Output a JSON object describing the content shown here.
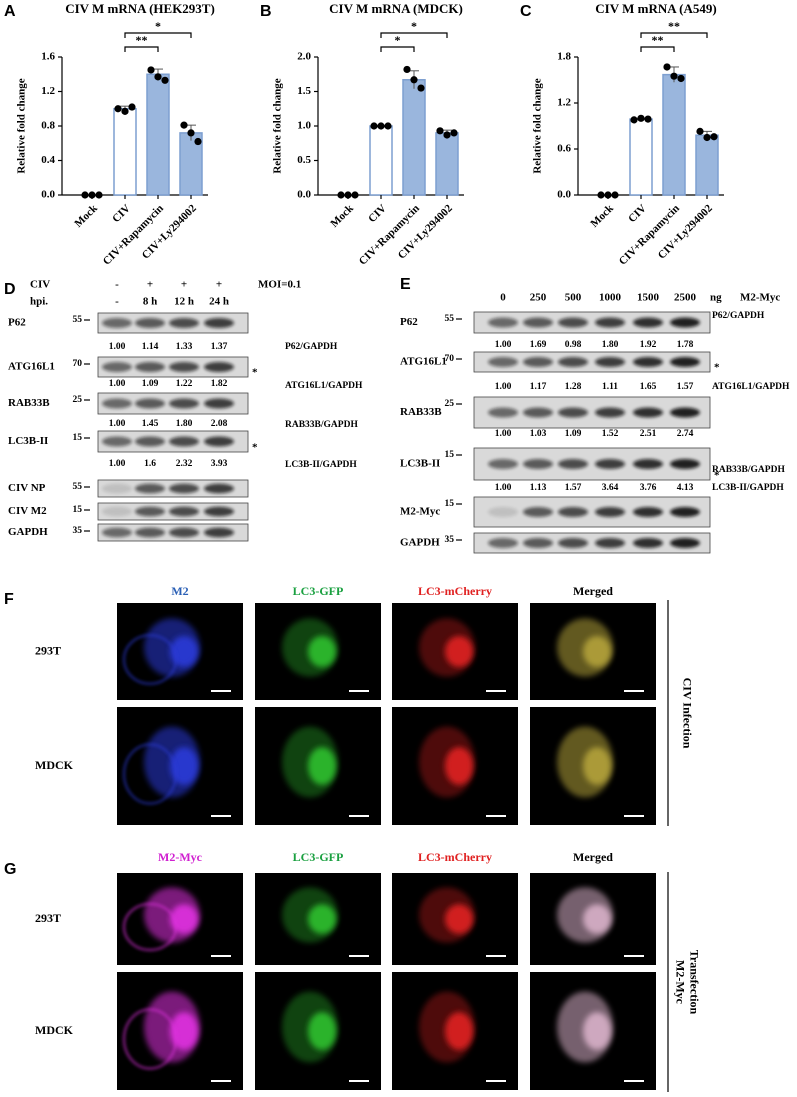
{
  "chart_data": [
    {
      "type": "bar",
      "panel": "A",
      "title": "CIV M mRNA (HEK293T)",
      "y_label": "Relative fold change",
      "categories": [
        "Mock",
        "CIV",
        "CIV+Rapamycin",
        "CIV+Ly294002"
      ],
      "values": [
        0,
        1.0,
        1.4,
        0.72
      ],
      "errors": [
        0,
        0.03,
        0.06,
        0.09
      ],
      "points": [
        [
          0,
          0,
          0
        ],
        [
          1.0,
          0.97,
          1.02
        ],
        [
          1.45,
          1.37,
          1.33
        ],
        [
          0.81,
          0.72,
          0.62
        ]
      ],
      "fill_colors": [
        "#ffffff",
        "#ffffff",
        "#9ab6dd",
        "#9ab6dd"
      ],
      "edge_color": "#7d9fd0",
      "ylim": [
        0,
        1.6
      ],
      "yticks": [
        {
          "value": 0,
          "label": "0.0"
        },
        0.4,
        0.8,
        1.2,
        1.6
      ],
      "significance": [
        null,
        null,
        "**",
        "*"
      ]
    },
    {
      "type": "bar",
      "panel": "B",
      "title": "CIV M mRNA (MDCK)",
      "y_label": "Relative fold change",
      "categories": [
        "Mock",
        "CIV",
        "CIV+Rapamycin",
        "CIV+Ly294002"
      ],
      "values": [
        0,
        1.0,
        1.67,
        0.9
      ],
      "errors": [
        0,
        0.01,
        0.13,
        0.04
      ],
      "points": [
        [
          0,
          0,
          0
        ],
        [
          1.0,
          1.0,
          1.0
        ],
        [
          1.82,
          1.67,
          1.55
        ],
        [
          0.93,
          0.87,
          0.9
        ]
      ],
      "fill_colors": [
        "#ffffff",
        "#ffffff",
        "#9ab6dd",
        "#9ab6dd"
      ],
      "edge_color": "#7d9fd0",
      "ylim": [
        0,
        2.0
      ],
      "yticks": [
        {
          "value": 0,
          "label": "0.0"
        },
        0.5,
        {
          "value": 1,
          "label": "1.0"
        },
        1.5,
        {
          "value": 2,
          "label": "2.0"
        }
      ],
      "significance": [
        null,
        null,
        "*",
        "*"
      ]
    },
    {
      "type": "bar",
      "panel": "C",
      "title": "CIV M mRNA (A549)",
      "y_label": "Relative fold change",
      "categories": [
        "Mock",
        "CIV",
        "CIV+Rapamycin",
        "CIV+Ly294002"
      ],
      "values": [
        0,
        0.99,
        1.57,
        0.78
      ],
      "errors": [
        0,
        0.01,
        0.1,
        0.05
      ],
      "points": [
        [
          0,
          0,
          0
        ],
        [
          0.98,
          1.0,
          0.99
        ],
        [
          1.67,
          1.55,
          1.52
        ],
        [
          0.83,
          0.75,
          0.76
        ]
      ],
      "fill_colors": [
        "#ffffff",
        "#ffffff",
        "#9ab6dd",
        "#9ab6dd"
      ],
      "edge_color": "#7d9fd0",
      "ylim": [
        0,
        1.8
      ],
      "yticks": [
        {
          "value": 0,
          "label": "0.0"
        },
        0.6,
        1.2,
        1.8
      ],
      "significance": [
        null,
        null,
        "**",
        "**"
      ]
    }
  ],
  "blots": [
    {
      "panel": "D",
      "header": [
        {
          "label": "CIV",
          "lanes": [
            "-",
            "+",
            "+",
            "+"
          ],
          "note": "MOI=0.1"
        },
        {
          "label": "hpi.",
          "lanes": [
            "-",
            "8 h",
            "12 h",
            "24 h"
          ]
        }
      ],
      "rows": [
        {
          "name": "P62",
          "marker": "55",
          "ratios": [
            "1.00",
            "1.14",
            "1.33",
            "1.37"
          ],
          "ratio_label": "P62/GAPDH"
        },
        {
          "name": "ATG16L1",
          "marker": "70",
          "ratios": [
            "1.00",
            "1.09",
            "1.22",
            "1.82"
          ],
          "ratio_label": "ATG16L1/GAPDH",
          "asterisk": "*"
        },
        {
          "name": "RAB33B",
          "marker": "25",
          "ratios": [
            "1.00",
            "1.45",
            "1.80",
            "2.08"
          ],
          "ratio_label": "RAB33B/GAPDH"
        },
        {
          "name": "LC3B-II",
          "marker": "15",
          "ratios": [
            "1.00",
            "1.6",
            "2.32",
            "3.93"
          ],
          "ratio_label": "LC3B-II/GAPDH",
          "asterisk": "*"
        },
        {
          "name": "CIV NP",
          "marker": "55"
        },
        {
          "name": "CIV M2",
          "marker": "15"
        },
        {
          "name": "GAPDH",
          "marker": "35"
        }
      ]
    },
    {
      "panel": "E",
      "header": [
        {
          "label": "M2-Myc",
          "lanes": [
            "0",
            "250",
            "500",
            "1000",
            "1500",
            "2500"
          ],
          "unit": "ng"
        }
      ],
      "rows": [
        {
          "name": "P62",
          "marker": "55",
          "ratios": [
            "1.00",
            "1.69",
            "0.98",
            "1.80",
            "1.92",
            "1.78"
          ],
          "ratio_label": "P62/GAPDH"
        },
        {
          "name": "ATG16L1",
          "marker": "70",
          "ratios": [
            "1.00",
            "1.17",
            "1.28",
            "1.11",
            "1.65",
            "1.57"
          ],
          "ratio_label": "ATG16L1/GAPDH",
          "asterisk": "*"
        },
        {
          "name": "RAB33B",
          "marker": "25",
          "ratios": [
            "1.00",
            "1.03",
            "1.09",
            "1.52",
            "2.51",
            "2.74"
          ],
          "ratio_label": "RAB33B/GAPDH"
        },
        {
          "name": "LC3B-II",
          "marker": "15",
          "ratios": [
            "1.00",
            "1.13",
            "1.57",
            "3.64",
            "3.76",
            "4.13"
          ],
          "ratio_label": "LC3B-II/GAPDH",
          "asterisk": "*"
        },
        {
          "name": "M2-Myc",
          "marker": "15"
        },
        {
          "name": "GAPDH",
          "marker": "35"
        }
      ]
    }
  ],
  "microscopy": [
    {
      "panel": "F",
      "columns": [
        "M2",
        "LC3-GFP",
        "LC3-mCherry",
        "Merged"
      ],
      "rows": [
        "293T",
        "MDCK"
      ],
      "side_label": [
        "CIV Infection"
      ]
    },
    {
      "panel": "G",
      "columns": [
        "M2-Myc",
        "LC3-GFP",
        "LC3-mCherry",
        "Merged"
      ],
      "rows": [
        "293T",
        "MDCK"
      ],
      "side_label": [
        "M2-Myc",
        "Transfection"
      ]
    }
  ]
}
